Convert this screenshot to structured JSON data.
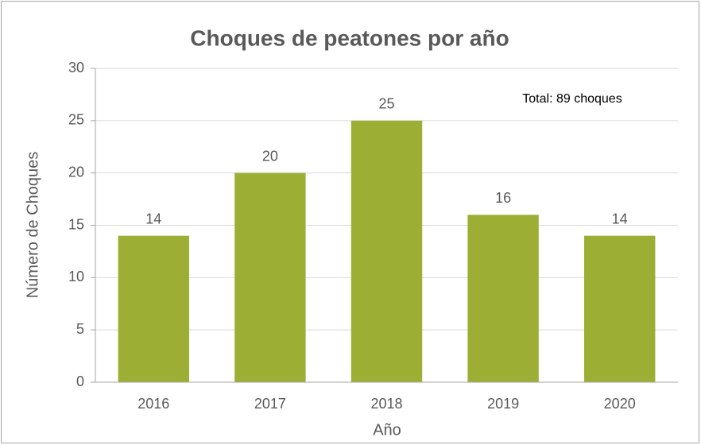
{
  "chart_data": {
    "type": "bar",
    "title": "Choques de peatones por año",
    "x_label": "Año",
    "y_label": "Número de Choques",
    "annotation": "Total: 89 choques",
    "categories": [
      "2016",
      "2017",
      "2018",
      "2019",
      "2020"
    ],
    "values": [
      14,
      20,
      25,
      16,
      14
    ],
    "color": "#9dae34",
    "ylim": [
      0,
      30
    ],
    "yticks": [
      0,
      5,
      10,
      15,
      20,
      25,
      30
    ],
    "grid": true
  }
}
